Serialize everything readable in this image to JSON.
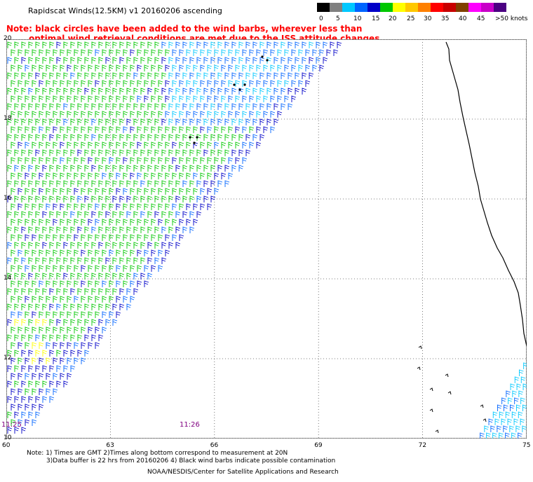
{
  "title": "Rapidscat Winds(12.5KM) v1 20160206 ascending",
  "note_line1": "Note: black circles have been added to the wind barbs, wherever less than",
  "note_line2": "optimal wind retrieval conditions are met due to the ISS attitude changes.",
  "colorbar": {
    "colors": [
      "#000000",
      "#808080",
      "#00c8ff",
      "#0064ff",
      "#0000c8",
      "#00c800",
      "#ffff00",
      "#ffc800",
      "#ff8000",
      "#ff0000",
      "#c80000",
      "#804000",
      "#ff00ff",
      "#c800c8",
      "#4b0082"
    ],
    "labels": [
      "0",
      "5",
      "10",
      "15",
      "20",
      "25",
      "30",
      "35",
      "40",
      "45",
      ">50 knots"
    ]
  },
  "lat_labels": [
    "20",
    "18",
    "16",
    "14",
    "12",
    "10"
  ],
  "lon_labels": [
    "60",
    "63",
    "66",
    "69",
    "72",
    "75"
  ],
  "time_labels": [
    "11:25",
    "11:26"
  ],
  "footer_line1": "Note: 1) Times are GMT 2)Times along bottom correspond to measurement at 20N",
  "footer_line2": "3)Data buffer is 22 hrs from 20160206 4) Black wind barbs indicate possible contamination",
  "footer_line3": "NOAA/NESDIS/Center for Satellite Applications and Research",
  "map": {
    "lon_range": [
      60,
      75
    ],
    "lat_range": [
      10,
      20
    ],
    "grid": "dotted",
    "barb_colors": {
      "green": "#00c800",
      "blue": "#0000c8",
      "lightblue": "#0064ff",
      "cyan": "#00c8ff",
      "yellow": "#ffff00",
      "black": "#000000",
      "coast": "#000000"
    }
  }
}
